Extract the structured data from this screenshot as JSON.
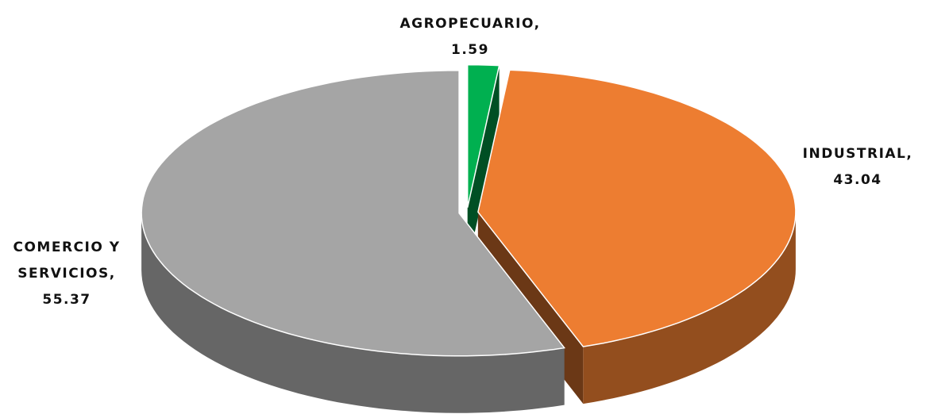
{
  "chart_data": {
    "type": "pie",
    "categories": [
      "AGROPECUARIO,",
      "INDUSTRIAL,",
      "COMERCIO Y SERVICIOS,"
    ],
    "series": [
      {
        "values": [
          1.59,
          43.04,
          55.37
        ],
        "colors": [
          "#00b050",
          "#ed7d31",
          "#a5a5a5"
        ]
      }
    ],
    "three_d": true
  }
}
